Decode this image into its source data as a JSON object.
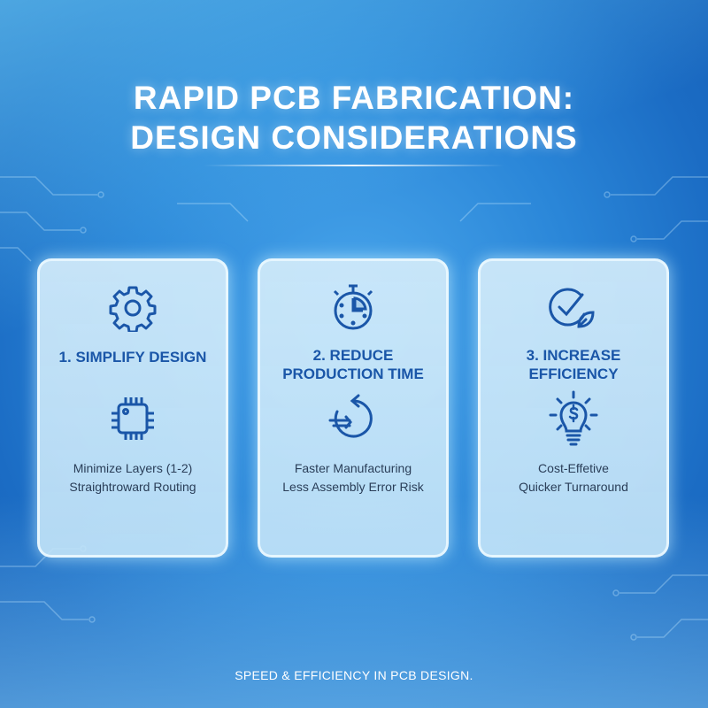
{
  "title": {
    "line1": "RAPID PCB FABRICATION:",
    "line2": "DESIGN CONSIDERATIONS"
  },
  "cards": [
    {
      "heading_lines": [
        "1. SIMPLIFY DESIGN"
      ],
      "top_icon": "gear-icon",
      "bottom_icon": "microchip-icon",
      "details": [
        "Minimize Layers (1-2)",
        "Straightroward Routing"
      ]
    },
    {
      "heading_lines": [
        "2. REDUCE",
        "PRODUCTION TIME"
      ],
      "top_icon": "stopwatch-icon",
      "bottom_icon": "fast-cycle-arrow-icon",
      "details": [
        "Faster Manufacturing",
        "Less Assembly Error Risk"
      ]
    },
    {
      "heading_lines": [
        "3. INCREASE",
        "EFFICIENCY"
      ],
      "top_icon": "check-leaf-icon",
      "bottom_icon": "dollar-lightbulb-icon",
      "details": [
        "Cost-Effetive",
        "Quicker Turnaround"
      ]
    }
  ],
  "footer": "SPEED & EFFICIENCY IN PCB DESIGN.",
  "colors": {
    "background": "#2a86d8",
    "heading": "#1a56a8",
    "icon": "#1a56a8",
    "card": "#cfe8f8"
  }
}
